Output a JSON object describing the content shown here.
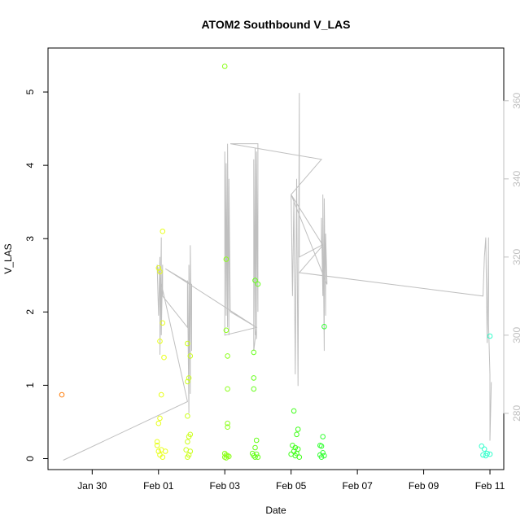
{
  "chart_data": {
    "type": "scatter",
    "title": "ATOM2 Southbound V_LAS",
    "xlabel": "Date",
    "ylabel": "V_LAS",
    "xlim": [
      "2016-01-28T16:00",
      "2016-02-11T10:00"
    ],
    "ylim": [
      -0.15,
      5.6
    ],
    "y2lim": [
      265.6,
      373.5
    ],
    "x_tick_labels": [
      {
        "label": "Jan 30",
        "value": "2016-01-30"
      },
      {
        "label": "Feb 01",
        "value": "2016-02-01"
      },
      {
        "label": "Feb 03",
        "value": "2016-02-03"
      },
      {
        "label": "Feb 05",
        "value": "2016-02-05"
      },
      {
        "label": "Feb 07",
        "value": "2016-02-07"
      },
      {
        "label": "Feb 09",
        "value": "2016-02-09"
      },
      {
        "label": "Feb 11",
        "value": "2016-02-11"
      }
    ],
    "y_ticks": [
      0,
      1,
      2,
      3,
      4,
      5
    ],
    "y2_ticks": [
      280,
      300,
      320,
      340,
      360
    ],
    "grid": false,
    "series": [
      {
        "kind": "points",
        "marker": "open-circle",
        "color_scale": "orange-to-cyan over time",
        "points": [
          [
            "2016-01-29T02:00",
            0.87,
            "#ff7f0e"
          ],
          [
            "2016-02-01T00:00",
            2.6,
            "#e8ff1a"
          ],
          [
            "2016-02-01T01:00",
            2.55,
            "#e8ff1a"
          ],
          [
            "2016-02-01T03:00",
            3.1,
            "#e8ff1a"
          ],
          [
            "2016-02-01T01:00",
            1.6,
            "#e8ff1a"
          ],
          [
            "2016-02-01T03:00",
            1.85,
            "#e8ff1a"
          ],
          [
            "2016-02-01T04:00",
            1.38,
            "#e8ff1a"
          ],
          [
            "2016-02-01T02:00",
            0.87,
            "#e8ff1a"
          ],
          [
            "2016-02-01T01:00",
            0.55,
            "#e8ff1a"
          ],
          [
            "2016-02-01T00:00",
            0.48,
            "#e8ff1a"
          ],
          [
            "2016-01-31T23:00",
            0.23,
            "#e8ff1a"
          ],
          [
            "2016-01-31T23:00",
            0.18,
            "#e8ff1a"
          ],
          [
            "2016-02-01T00:00",
            0.1,
            "#e8ff1a"
          ],
          [
            "2016-02-01T02:00",
            0.12,
            "#e8ff1a"
          ],
          [
            "2016-02-01T01:00",
            0.05,
            "#e8ff1a"
          ],
          [
            "2016-02-01T03:00",
            0.02,
            "#e8ff1a"
          ],
          [
            "2016-02-01T05:00",
            0.1,
            "#e8ff1a"
          ],
          [
            "2016-02-01T21:00",
            1.57,
            "#ccff1a"
          ],
          [
            "2016-02-01T23:00",
            1.4,
            "#ccff1a"
          ],
          [
            "2016-02-01T21:00",
            1.05,
            "#ccff1a"
          ],
          [
            "2016-02-01T22:00",
            1.1,
            "#ccff1a"
          ],
          [
            "2016-02-01T21:00",
            0.58,
            "#ccff1a"
          ],
          [
            "2016-02-01T22:00",
            0.3,
            "#ccff1a"
          ],
          [
            "2016-02-01T23:00",
            0.33,
            "#ccff1a"
          ],
          [
            "2016-02-01T21:00",
            0.23,
            "#ccff1a"
          ],
          [
            "2016-02-01T20:00",
            0.12,
            "#ccff1a"
          ],
          [
            "2016-02-01T23:00",
            0.1,
            "#ccff1a"
          ],
          [
            "2016-02-01T22:00",
            0.05,
            "#ccff1a"
          ],
          [
            "2016-02-01T21:00",
            0.02,
            "#ccff1a"
          ],
          [
            "2016-02-03T00:00",
            5.35,
            "#8cff1a"
          ],
          [
            "2016-02-03T01:00",
            2.72,
            "#8cff1a"
          ],
          [
            "2016-02-03T01:00",
            1.75,
            "#8cff1a"
          ],
          [
            "2016-02-03T02:00",
            1.4,
            "#8cff1a"
          ],
          [
            "2016-02-03T02:00",
            0.95,
            "#8cff1a"
          ],
          [
            "2016-02-03T02:00",
            0.48,
            "#8cff1a"
          ],
          [
            "2016-02-03T02:00",
            0.43,
            "#8cff1a"
          ],
          [
            "2016-02-03T00:00",
            0.07,
            "#8cff1a"
          ],
          [
            "2016-02-03T01:00",
            0.05,
            "#8cff1a"
          ],
          [
            "2016-02-03T02:00",
            0.04,
            "#8cff1a"
          ],
          [
            "2016-02-03T00:00",
            0.02,
            "#8cff1a"
          ],
          [
            "2016-02-03T01:00",
            0.01,
            "#8cff1a"
          ],
          [
            "2016-02-03T03:00",
            0.03,
            "#8cff1a"
          ],
          [
            "2016-02-03T22:00",
            2.43,
            "#66ff1a"
          ],
          [
            "2016-02-04T00:00",
            2.38,
            "#66ff1a"
          ],
          [
            "2016-02-03T21:00",
            1.45,
            "#66ff1a"
          ],
          [
            "2016-02-03T21:00",
            1.1,
            "#66ff1a"
          ],
          [
            "2016-02-03T21:00",
            0.95,
            "#66ff1a"
          ],
          [
            "2016-02-03T23:00",
            0.25,
            "#66ff1a"
          ],
          [
            "2016-02-03T22:00",
            0.15,
            "#66ff1a"
          ],
          [
            "2016-02-03T20:00",
            0.07,
            "#66ff1a"
          ],
          [
            "2016-02-03T23:00",
            0.06,
            "#66ff1a"
          ],
          [
            "2016-02-03T21:00",
            0.04,
            "#66ff1a"
          ],
          [
            "2016-02-03T22:00",
            0.02,
            "#66ff1a"
          ],
          [
            "2016-02-04T00:00",
            0.02,
            "#66ff1a"
          ],
          [
            "2016-02-05T02:00",
            0.65,
            "#40ff1a"
          ],
          [
            "2016-02-05T05:00",
            0.4,
            "#40ff1a"
          ],
          [
            "2016-02-05T04:00",
            0.33,
            "#40ff1a"
          ],
          [
            "2016-02-05T01:00",
            0.18,
            "#40ff1a"
          ],
          [
            "2016-02-05T03:00",
            0.15,
            "#40ff1a"
          ],
          [
            "2016-02-05T05:00",
            0.13,
            "#40ff1a"
          ],
          [
            "2016-02-05T02:00",
            0.1,
            "#40ff1a"
          ],
          [
            "2016-02-05T00:00",
            0.06,
            "#40ff1a"
          ],
          [
            "2016-02-05T04:00",
            0.07,
            "#40ff1a"
          ],
          [
            "2016-02-05T03:00",
            0.04,
            "#40ff1a"
          ],
          [
            "2016-02-05T06:00",
            0.02,
            "#40ff1a"
          ],
          [
            "2016-02-06T00:00",
            1.8,
            "#33ff33"
          ],
          [
            "2016-02-05T23:00",
            0.3,
            "#33ff33"
          ],
          [
            "2016-02-05T21:00",
            0.18,
            "#33ff33"
          ],
          [
            "2016-02-05T22:00",
            0.17,
            "#33ff33"
          ],
          [
            "2016-02-05T23:00",
            0.08,
            "#33ff33"
          ],
          [
            "2016-02-05T21:00",
            0.05,
            "#33ff33"
          ],
          [
            "2016-02-06T00:00",
            0.04,
            "#33ff33"
          ],
          [
            "2016-02-05T22:00",
            0.02,
            "#33ff33"
          ],
          [
            "2016-02-10T18:00",
            0.17,
            "#33ffcc"
          ],
          [
            "2016-02-10T20:00",
            0.13,
            "#33ffcc"
          ],
          [
            "2016-02-10T22:00",
            0.07,
            "#33ffcc"
          ],
          [
            "2016-02-10T19:00",
            0.05,
            "#33ffcc"
          ],
          [
            "2016-02-10T21:00",
            0.04,
            "#33ffcc"
          ],
          [
            "2016-02-11T00:00",
            1.67,
            "#33ffcc"
          ],
          [
            "2016-02-11T00:00",
            0.06,
            "#33ffcc"
          ]
        ]
      },
      {
        "kind": "line",
        "axis": "right",
        "color": "#bfbfbf",
        "points": [
          [
            "2016-01-29T03:00",
            268
          ],
          [
            "2016-02-01T21:00",
            283
          ],
          [
            "2016-01-31T23:00",
            318
          ],
          [
            "2016-02-01T00:00",
            305
          ],
          [
            "2016-02-01T01:00",
            320
          ],
          [
            "2016-02-01T01:00",
            295
          ],
          [
            "2016-02-01T02:00",
            325
          ],
          [
            "2016-02-01T02:00",
            300
          ],
          [
            "2016-02-01T03:00",
            318
          ],
          [
            "2016-02-01T03:00",
            310
          ],
          [
            "2016-02-01T21:00",
            302
          ],
          [
            "2016-02-01T21:00",
            314
          ],
          [
            "2016-02-01T22:00",
            280
          ],
          [
            "2016-02-01T22:00",
            318
          ],
          [
            "2016-02-01T23:00",
            285
          ],
          [
            "2016-02-01T23:00",
            323
          ],
          [
            "2016-02-02T00:00",
            296
          ],
          [
            "2016-02-02T00:00",
            313
          ],
          [
            "2016-02-01T05:00",
            317
          ],
          [
            "2016-02-03T23:00",
            302
          ],
          [
            "2016-02-03T00:00",
            300
          ],
          [
            "2016-02-03T00:00",
            347
          ],
          [
            "2016-02-03T01:00",
            305
          ],
          [
            "2016-02-03T01:00",
            344
          ],
          [
            "2016-02-03T02:00",
            302
          ],
          [
            "2016-02-03T02:00",
            349
          ],
          [
            "2016-02-03T03:00",
            300
          ],
          [
            "2016-02-03T03:00",
            340
          ],
          [
            "2016-02-03T04:00",
            306
          ],
          [
            "2016-02-03T23:00",
            302
          ],
          [
            "2016-02-03T21:00",
            296
          ],
          [
            "2016-02-03T21:00",
            345
          ],
          [
            "2016-02-03T22:00",
            300
          ],
          [
            "2016-02-03T22:00",
            348
          ],
          [
            "2016-02-03T23:00",
            299
          ],
          [
            "2016-02-03T23:00",
            347
          ],
          [
            "2016-02-04T00:00",
            306
          ],
          [
            "2016-02-04T00:00",
            349
          ],
          [
            "2016-02-03T04:00",
            349
          ],
          [
            "2016-02-05T22:00",
            345
          ],
          [
            "2016-02-05T00:00",
            336
          ],
          [
            "2016-02-05T01:00",
            310
          ],
          [
            "2016-02-05T02:00",
            335
          ],
          [
            "2016-02-05T03:00",
            290
          ],
          [
            "2016-02-05T04:00",
            340
          ],
          [
            "2016-02-05T05:00",
            287
          ],
          [
            "2016-02-05T06:00",
            362
          ],
          [
            "2016-02-05T06:00",
            320
          ],
          [
            "2016-02-05T22:00",
            323
          ],
          [
            "2016-02-05T22:00",
            330
          ],
          [
            "2016-02-05T23:00",
            310
          ],
          [
            "2016-02-05T23:00",
            336
          ],
          [
            "2016-02-06T00:00",
            296
          ],
          [
            "2016-02-06T00:00",
            335
          ],
          [
            "2016-02-06T01:00",
            305
          ],
          [
            "2016-02-06T01:00",
            326
          ],
          [
            "2016-02-06T02:00",
            313
          ],
          [
            "2016-02-05T00:00",
            336
          ],
          [
            "2016-02-05T23:00",
            323
          ],
          [
            "2016-02-05T06:00",
            316
          ],
          [
            "2016-02-10T19:00",
            310
          ],
          [
            "2016-02-10T20:00",
            320
          ],
          [
            "2016-02-10T21:00",
            325
          ],
          [
            "2016-02-10T22:00",
            298
          ],
          [
            "2016-02-10T23:00",
            325
          ],
          [
            "2016-02-10T23:00",
            303
          ],
          [
            "2016-02-11T00:00",
            290
          ],
          [
            "2016-02-11T00:00",
            273
          ],
          [
            "2016-02-11T01:00",
            288
          ]
        ]
      }
    ]
  }
}
